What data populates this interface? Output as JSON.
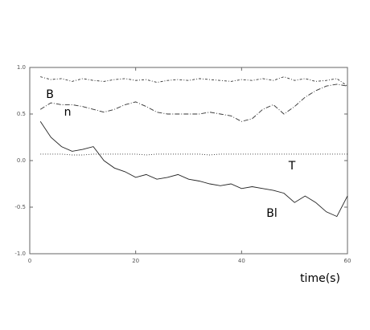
{
  "chart_data": {
    "type": "line",
    "xlabel": "time(s)",
    "x": [
      2,
      4,
      6,
      8,
      10,
      12,
      14,
      16,
      18,
      20,
      22,
      24,
      26,
      28,
      30,
      32,
      34,
      36,
      38,
      40,
      42,
      44,
      46,
      48,
      50,
      52,
      54,
      56,
      58,
      60
    ],
    "series": [
      {
        "name": "B",
        "color": "#333333",
        "dash": "3 2 1 2",
        "values": [
          0.9,
          0.87,
          0.88,
          0.85,
          0.88,
          0.86,
          0.85,
          0.87,
          0.88,
          0.86,
          0.87,
          0.84,
          0.86,
          0.87,
          0.86,
          0.88,
          0.87,
          0.86,
          0.85,
          0.87,
          0.86,
          0.88,
          0.86,
          0.9,
          0.86,
          0.88,
          0.85,
          0.86,
          0.88,
          0.8
        ]
      },
      {
        "name": "n",
        "color": "#333333",
        "dash": "6 2 1 2",
        "values": [
          0.55,
          0.62,
          0.6,
          0.6,
          0.58,
          0.55,
          0.52,
          0.55,
          0.6,
          0.63,
          0.58,
          0.52,
          0.5,
          0.5,
          0.5,
          0.5,
          0.52,
          0.5,
          0.48,
          0.42,
          0.45,
          0.55,
          0.6,
          0.5,
          0.58,
          0.68,
          0.75,
          0.8,
          0.82,
          0.8
        ]
      },
      {
        "name": "T",
        "color": "#333333",
        "dash": "1 2",
        "values": [
          0.07,
          0.07,
          0.07,
          0.06,
          0.06,
          0.07,
          0.07,
          0.07,
          0.07,
          0.07,
          0.06,
          0.07,
          0.07,
          0.07,
          0.07,
          0.07,
          0.06,
          0.07,
          0.07,
          0.07,
          0.07,
          0.07,
          0.07,
          0.07,
          0.07,
          0.07,
          0.07,
          0.07,
          0.07,
          0.07
        ]
      },
      {
        "name": "Bl",
        "color": "#222222",
        "dash": "none",
        "values": [
          0.42,
          0.25,
          0.15,
          0.1,
          0.12,
          0.15,
          0.0,
          -0.08,
          -0.12,
          -0.18,
          -0.15,
          -0.2,
          -0.18,
          -0.15,
          -0.2,
          -0.22,
          -0.25,
          -0.27,
          -0.25,
          -0.3,
          -0.28,
          -0.3,
          -0.32,
          -0.35,
          -0.45,
          -0.38,
          -0.45,
          -0.55,
          -0.6,
          -0.38
        ]
      }
    ],
    "xlim": [
      0,
      60
    ],
    "xticks": [
      0,
      20,
      40,
      60
    ],
    "ylim": [
      -1,
      1
    ],
    "yticks": [
      {
        "value": -1,
        "label": "-1.0"
      },
      -0.5,
      {
        "value": 0,
        "label": "0.0"
      },
      0.5,
      {
        "value": 1,
        "label": "1.0"
      }
    ]
  }
}
